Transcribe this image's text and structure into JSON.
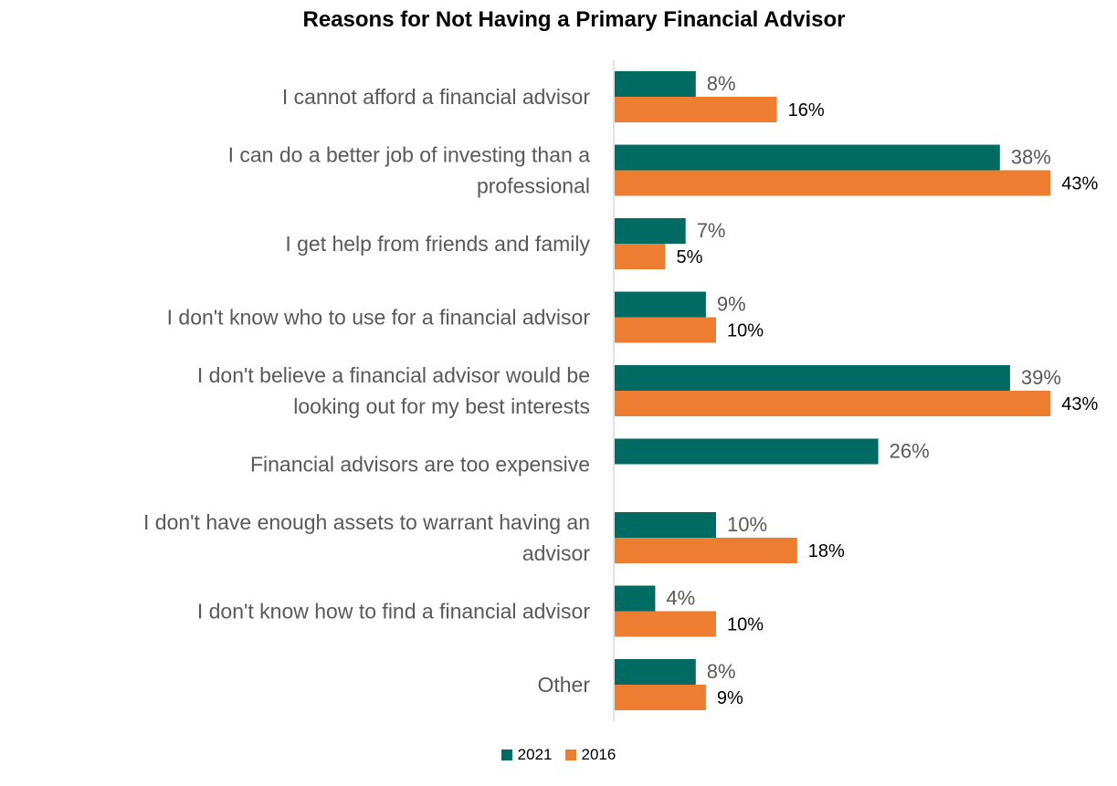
{
  "chart_data": {
    "type": "bar",
    "orientation": "horizontal",
    "title": "Reasons for Not Having a Primary Financial Advisor",
    "categories": [
      "I cannot afford a financial advisor",
      "I can do a better job of investing than a professional",
      "I get help from friends and family",
      "I don't know who to use for a financial advisor",
      "I don't believe a financial advisor would be looking out for my best interests",
      "Financial advisors are too expensive",
      "I don't have enough assets to warrant having an advisor",
      "I don't know how to find a financial advisor",
      "Other"
    ],
    "category_lines": [
      [
        "I cannot afford a financial advisor"
      ],
      [
        "I can do a better job of investing than a",
        "professional"
      ],
      [
        "I get help from friends and family"
      ],
      [
        "I don't know who to use for a financial advisor"
      ],
      [
        "I don't believe a financial advisor would be",
        "looking out for my best interests"
      ],
      [
        "Financial advisors are too expensive"
      ],
      [
        "I don't have enough assets to warrant having an",
        "advisor"
      ],
      [
        "I don't know how to find a financial advisor"
      ],
      [
        "Other"
      ]
    ],
    "series": [
      {
        "name": "2021",
        "color": "#006B63",
        "values": [
          8,
          38,
          7,
          9,
          39,
          26,
          10,
          4,
          8
        ],
        "labels": [
          "8%",
          "38%",
          "7%",
          "9%",
          "39%",
          "26%",
          "10%",
          "4%",
          "8%"
        ]
      },
      {
        "name": "2016",
        "color": "#ED7D31",
        "values": [
          16,
          43,
          5,
          10,
          43,
          null,
          18,
          10,
          9
        ],
        "labels": [
          "16%",
          "43%",
          "5%",
          "10%",
          "43%",
          null,
          "18%",
          "10%",
          "9%"
        ]
      }
    ],
    "xlim": [
      0,
      50
    ],
    "grid": false,
    "legend_position": "bottom"
  }
}
